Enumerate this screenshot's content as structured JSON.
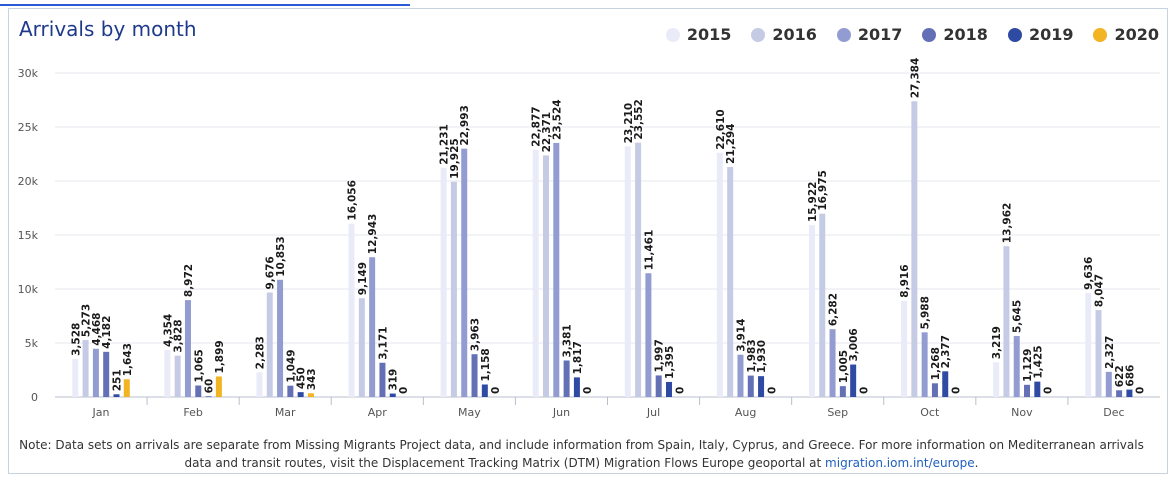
{
  "chart_data": {
    "type": "bar",
    "title": "Arrivals by month",
    "categories": [
      "Jan",
      "Feb",
      "Mar",
      "Apr",
      "May",
      "Jun",
      "Jul",
      "Aug",
      "Sep",
      "Oct",
      "Nov",
      "Dec"
    ],
    "ylim": [
      0,
      30000
    ],
    "yticks": [
      "0",
      "5k",
      "10k",
      "15k",
      "20k",
      "25k",
      "30k"
    ],
    "grid": true,
    "legend_position": "top-right",
    "series": [
      {
        "name": "2015",
        "color": "#e9ecf8",
        "values": [
          3528,
          4354,
          2283,
          16056,
          21231,
          22877,
          23210,
          22610,
          15922,
          8916,
          3219,
          9636
        ]
      },
      {
        "name": "2016",
        "color": "#c6cbe5",
        "values": [
          5273,
          3828,
          9676,
          9149,
          19925,
          22371,
          23552,
          21294,
          16975,
          27384,
          13962,
          8047
        ]
      },
      {
        "name": "2017",
        "color": "#939cd1",
        "values": [
          4468,
          8972,
          10853,
          12943,
          22993,
          23524,
          11461,
          3914,
          6282,
          5988,
          5645,
          2327
        ]
      },
      {
        "name": "2018",
        "color": "#6370b6",
        "values": [
          4182,
          1065,
          1049,
          3171,
          3963,
          3381,
          1997,
          1983,
          1005,
          1268,
          1129,
          622
        ]
      },
      {
        "name": "2019",
        "color": "#2f4aa2",
        "values": [
          251,
          60,
          450,
          319,
          1158,
          1817,
          1395,
          1930,
          3006,
          2377,
          1425,
          686
        ]
      },
      {
        "name": "2020",
        "color": "#f2b422",
        "values": [
          1643,
          1899,
          343,
          null,
          null,
          null,
          null,
          null,
          null,
          null,
          null,
          null
        ]
      }
    ],
    "data_labels": [
      [
        "3,528",
        "5,273",
        "4,468",
        "4,182",
        "251",
        "1,643"
      ],
      [
        "4,354",
        "3,828",
        "8,972",
        "1,065",
        "60",
        "1,899"
      ],
      [
        "2,283",
        "9,676",
        "10,853",
        "1,049",
        "450",
        "343"
      ],
      [
        "16,056",
        "9,149",
        "12,943",
        "3,171",
        "319",
        "0"
      ],
      [
        "21,231",
        "19,925",
        "22,993",
        "3,963",
        "1,158",
        "0"
      ],
      [
        "22,877",
        "22,371",
        "23,524",
        "3,381",
        "1,817",
        "0"
      ],
      [
        "23,210",
        "23,552",
        "11,461",
        "1,997",
        "1,395",
        "0"
      ],
      [
        "22,610",
        "21,294",
        "3,914",
        "1,983",
        "1,930",
        "0"
      ],
      [
        "15,922",
        "16,975",
        "6,282",
        "1,005",
        "3,006",
        "0"
      ],
      [
        "8,916",
        "27,384",
        "5,988",
        "1,268",
        "2,377",
        "0"
      ],
      [
        "3,219",
        "13,962",
        "5,645",
        "1,129",
        "1,425",
        "0"
      ],
      [
        "9,636",
        "8,047",
        "2,327",
        "622",
        "686",
        "0"
      ]
    ]
  },
  "note": {
    "text": "Note: Data sets on arrivals are separate from Missing Migrants Project data, and include information from Spain, Italy, Cyprus, and Greece. For more information on Mediterranean arrivals data and transit routes, visit the Displacement Tracking Matrix (DTM) Migration Flows Europe geoportal at ",
    "link_text": "migration.iom.int/europe",
    "end": "."
  }
}
